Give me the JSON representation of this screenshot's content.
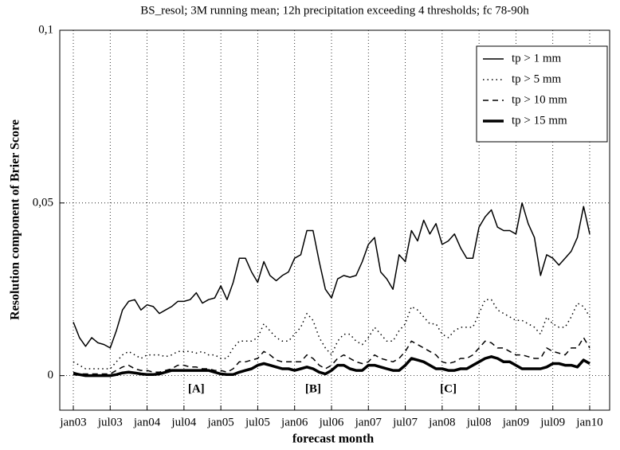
{
  "chart_data": {
    "type": "line",
    "title": "BS_resol; 3M running mean; 12h precipitation exceeding 4 thresholds; fc 78-90h",
    "xlabel": "forecast month",
    "ylabel": "Resolution component of Brier Score",
    "categories": [
      "jan03",
      null,
      null,
      null,
      null,
      null,
      "jul03",
      null,
      null,
      null,
      null,
      null,
      "jan04",
      null,
      null,
      null,
      null,
      null,
      "jul04",
      null,
      null,
      null,
      null,
      null,
      "jan05",
      null,
      null,
      null,
      null,
      null,
      "jul05",
      null,
      null,
      null,
      null,
      null,
      "jan06",
      null,
      null,
      null,
      null,
      null,
      "jul06",
      null,
      null,
      null,
      null,
      null,
      "jan07",
      null,
      null,
      null,
      null,
      null,
      "jul07",
      null,
      null,
      null,
      null,
      null,
      "jan08",
      null,
      null,
      null,
      null,
      null,
      "jul08",
      null,
      null,
      null,
      null,
      null,
      "jan09",
      null,
      null,
      null,
      null,
      null,
      "jul09",
      null,
      null,
      null,
      null,
      null,
      "jan10"
    ],
    "ylim": [
      -0.01,
      0.1
    ],
    "yticks": [
      0,
      {
        "value": 0.05,
        "label": "0,05"
      },
      {
        "value": 0.1,
        "label": "0,1"
      }
    ],
    "grid": true,
    "legend": "top-right",
    "annotations": [
      "[A]",
      "[B]",
      "[C]"
    ],
    "series": [
      {
        "name": "tp > 1 mm",
        "color": "#000000",
        "dash": "solid",
        "width": 1.5,
        "values": [
          0.0155,
          0.011,
          0.0085,
          0.011,
          0.0095,
          0.009,
          0.008,
          0.013,
          0.019,
          0.0215,
          0.022,
          0.019,
          0.0205,
          0.02,
          0.018,
          0.019,
          0.02,
          0.0215,
          0.0215,
          0.022,
          0.024,
          0.021,
          0.022,
          0.0225,
          0.026,
          0.022,
          0.027,
          0.034,
          0.034,
          0.03,
          0.027,
          0.033,
          0.029,
          0.0275,
          0.029,
          0.03,
          0.034,
          0.035,
          0.042,
          0.042,
          0.033,
          0.025,
          0.0225,
          0.028,
          0.029,
          0.0285,
          0.029,
          0.033,
          0.038,
          0.04,
          0.03,
          0.028,
          0.025,
          0.035,
          0.033,
          0.042,
          0.039,
          0.045,
          0.041,
          0.044,
          0.038,
          0.039,
          0.041,
          0.037,
          0.034,
          0.034,
          0.043,
          0.046,
          0.048,
          0.043,
          0.042,
          0.042,
          0.041,
          0.05,
          0.044,
          0.04,
          0.029,
          0.035,
          0.034,
          0.032,
          0.034,
          0.036,
          0.04,
          0.049,
          0.041
        ]
      },
      {
        "name": "tp > 5 mm",
        "color": "#000000",
        "dash": "dotted",
        "width": 1.5,
        "values": [
          0.004,
          0.003,
          0.002,
          0.002,
          0.002,
          0.002,
          0.002,
          0.004,
          0.006,
          0.007,
          0.006,
          0.005,
          0.006,
          0.006,
          0.006,
          0.0055,
          0.006,
          0.007,
          0.007,
          0.007,
          0.0065,
          0.007,
          0.006,
          0.006,
          0.005,
          0.005,
          0.008,
          0.01,
          0.01,
          0.01,
          0.011,
          0.015,
          0.013,
          0.011,
          0.01,
          0.01,
          0.012,
          0.014,
          0.018,
          0.016,
          0.011,
          0.008,
          0.006,
          0.01,
          0.012,
          0.012,
          0.01,
          0.009,
          0.011,
          0.014,
          0.012,
          0.01,
          0.01,
          0.013,
          0.015,
          0.02,
          0.019,
          0.017,
          0.015,
          0.015,
          0.012,
          0.011,
          0.013,
          0.014,
          0.014,
          0.014,
          0.018,
          0.022,
          0.022,
          0.019,
          0.018,
          0.017,
          0.016,
          0.016,
          0.015,
          0.014,
          0.012,
          0.017,
          0.015,
          0.014,
          0.014,
          0.017,
          0.021,
          0.02,
          0.017
        ]
      },
      {
        "name": "tp > 10 mm",
        "color": "#000000",
        "dash": "dashed",
        "width": 1.5,
        "values": [
          0.001,
          0.0005,
          0.0005,
          0.0005,
          0.0005,
          0.0005,
          0.0005,
          0.0015,
          0.0025,
          0.003,
          0.002,
          0.0015,
          0.0015,
          0.001,
          0.001,
          0.0015,
          0.002,
          0.003,
          0.003,
          0.0025,
          0.0025,
          0.002,
          0.002,
          0.0015,
          0.0015,
          0.001,
          0.002,
          0.004,
          0.004,
          0.0045,
          0.005,
          0.007,
          0.006,
          0.0045,
          0.004,
          0.004,
          0.004,
          0.004,
          0.006,
          0.005,
          0.003,
          0.002,
          0.003,
          0.005,
          0.006,
          0.005,
          0.004,
          0.0035,
          0.004,
          0.006,
          0.005,
          0.0045,
          0.004,
          0.005,
          0.007,
          0.01,
          0.009,
          0.008,
          0.007,
          0.006,
          0.004,
          0.0035,
          0.004,
          0.005,
          0.005,
          0.006,
          0.008,
          0.01,
          0.0095,
          0.008,
          0.008,
          0.007,
          0.006,
          0.006,
          0.0055,
          0.005,
          0.005,
          0.008,
          0.007,
          0.0065,
          0.006,
          0.008,
          0.008,
          0.011,
          0.008
        ]
      },
      {
        "name": "tp > 15 mm",
        "color": "#000000",
        "dash": "solid",
        "width": 3.5,
        "values": [
          0.0005,
          0.0003,
          0,
          0,
          0,
          0,
          0,
          0.0003,
          0.0008,
          0.001,
          0.0008,
          0.0005,
          0.0003,
          0.0003,
          0.0005,
          0.001,
          0.0015,
          0.0015,
          0.0015,
          0.0015,
          0.0015,
          0.0015,
          0.0015,
          0.001,
          0.0005,
          0.0003,
          0.0003,
          0.001,
          0.0015,
          0.002,
          0.003,
          0.0035,
          0.003,
          0.0025,
          0.002,
          0.002,
          0.0015,
          0.002,
          0.0025,
          0.002,
          0.001,
          0.0005,
          0.0015,
          0.003,
          0.003,
          0.002,
          0.0015,
          0.0015,
          0.003,
          0.003,
          0.0025,
          0.002,
          0.0015,
          0.0015,
          0.003,
          0.005,
          0.0045,
          0.004,
          0.003,
          0.002,
          0.002,
          0.0015,
          0.0015,
          0.002,
          0.002,
          0.003,
          0.004,
          0.005,
          0.0055,
          0.005,
          0.004,
          0.004,
          0.003,
          0.002,
          0.002,
          0.002,
          0.002,
          0.0025,
          0.0035,
          0.0035,
          0.003,
          0.003,
          0.0025,
          0.0045,
          0.0035
        ]
      }
    ]
  }
}
